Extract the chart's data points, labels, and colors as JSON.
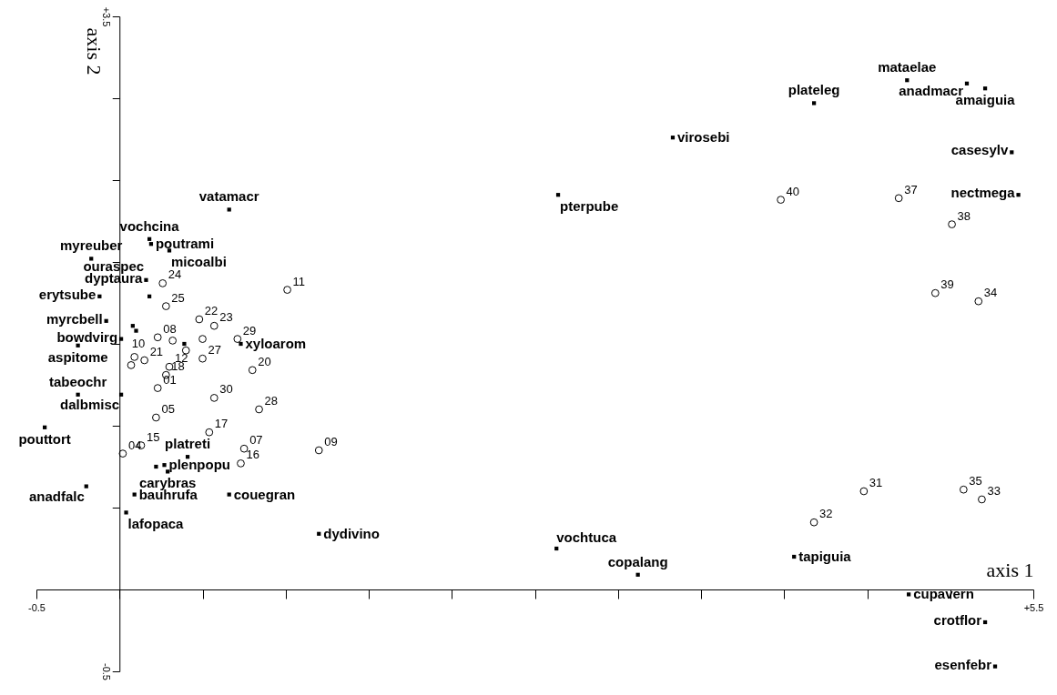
{
  "chart_data": {
    "type": "scatter",
    "xlabel": "axis 1",
    "ylabel": "axis 2",
    "xlim": [
      -0.5,
      5.5
    ],
    "ylim": [
      -0.5,
      3.5
    ],
    "xticks": [
      {
        "value": -0.5,
        "label": "-0.5"
      },
      {
        "value": 0,
        "label": null
      },
      {
        "value": 0.5,
        "label": null
      },
      {
        "value": 1,
        "label": null
      },
      {
        "value": 1.5,
        "label": null
      },
      {
        "value": 2,
        "label": null
      },
      {
        "value": 2.5,
        "label": null
      },
      {
        "value": 3,
        "label": null
      },
      {
        "value": 3.5,
        "label": null
      },
      {
        "value": 4,
        "label": null
      },
      {
        "value": 4.5,
        "label": null
      },
      {
        "value": 5,
        "label": null
      },
      {
        "value": 5.5,
        "label": "+5.5"
      }
    ],
    "yticks": [
      {
        "value": -0.5,
        "label": "-0.5"
      },
      {
        "value": 0,
        "label": null
      },
      {
        "value": 0.5,
        "label": null
      },
      {
        "value": 1,
        "label": null
      },
      {
        "value": 1.5,
        "label": null
      },
      {
        "value": 2,
        "label": null
      },
      {
        "value": 2.5,
        "label": null
      },
      {
        "value": 3,
        "label": null
      },
      {
        "value": 3.5,
        "label": "+3.5"
      }
    ],
    "series": [
      {
        "color": "#000000",
        "marker": "square",
        "x": [
          0.66,
          0.18,
          0.19,
          0.3,
          -0.17,
          0.18,
          0.16,
          -0.12,
          -0.08,
          0.01,
          0.08,
          0.1,
          -0.25,
          0.39,
          0.73,
          -0.25,
          0.01,
          -0.45,
          0.41,
          0.22,
          0.27,
          0.29,
          -0.2,
          0.09,
          0.04,
          0.66,
          1.2,
          2.63,
          3.12,
          2.64,
          3.33,
          4.18,
          4.74,
          5.1,
          5.21,
          5.37,
          5.41,
          4.06,
          4.75,
          5.21,
          5.27
        ],
        "values": [
          2.32,
          2.14,
          2.11,
          2.07,
          2.02,
          1.79,
          1.89,
          1.79,
          1.64,
          1.53,
          1.61,
          1.58,
          1.49,
          1.5,
          1.5,
          1.19,
          1.19,
          0.99,
          0.81,
          0.75,
          0.76,
          0.72,
          0.63,
          0.58,
          0.47,
          0.58,
          0.34,
          0.25,
          0.09,
          2.41,
          2.76,
          2.97,
          3.11,
          3.09,
          3.06,
          2.67,
          2.41,
          0.2,
          -0.03,
          -0.2,
          -0.47
        ]
      },
      {
        "color": "#000000",
        "marker": "circle",
        "x": [
          1.01,
          0.26,
          0.28,
          0.48,
          0.57,
          0.23,
          0.32,
          0.5,
          0.4,
          0.71,
          0.09,
          0.15,
          0.07,
          0.3,
          0.28,
          0.5,
          0.8,
          0.23,
          0.57,
          0.84,
          0.22,
          0.54,
          0.13,
          0.02,
          0.75,
          0.73,
          1.2,
          3.98,
          4.69,
          5.01,
          4.91,
          5.17,
          4.48,
          4.18,
          5.08,
          5.19
        ],
        "values": [
          1.83,
          1.87,
          1.73,
          1.65,
          1.61,
          1.54,
          1.52,
          1.53,
          1.46,
          1.53,
          1.42,
          1.4,
          1.37,
          1.36,
          1.31,
          1.41,
          1.34,
          1.23,
          1.17,
          1.1,
          1.05,
          0.96,
          0.88,
          0.83,
          0.86,
          0.77,
          0.85,
          2.38,
          2.39,
          2.23,
          1.81,
          1.76,
          0.6,
          0.41,
          0.61,
          0.55
        ]
      }
    ],
    "annotations": [
      {
        "text": "vatamacr",
        "x": 0.66,
        "y": 2.32
      },
      {
        "text": "vochcina",
        "x": 0.18,
        "y": 2.14
      },
      {
        "text": "poutrami",
        "x": 0.19,
        "y": 2.11
      },
      {
        "text": "micoalbi",
        "x": 0.3,
        "y": 2.07
      },
      {
        "text": "myreuber",
        "x": -0.17,
        "y": 2.02
      },
      {
        "text": "ouraspec",
        "x": 0.18,
        "y": 1.79
      },
      {
        "text": "dyptaura",
        "x": 0.16,
        "y": 1.89
      },
      {
        "text": "erytsube",
        "x": -0.12,
        "y": 1.79
      },
      {
        "text": "myrcbell",
        "x": -0.08,
        "y": 1.64
      },
      {
        "text": "bowdvirg",
        "x": 0.01,
        "y": 1.53
      },
      {
        "text": "aspitome",
        "x": -0.25,
        "y": 1.49
      },
      {
        "text": "xyloarom",
        "x": 0.73,
        "y": 1.5
      },
      {
        "text": "tabeochr",
        "x": -0.25,
        "y": 1.19
      },
      {
        "text": "dalbmisc",
        "x": 0.01,
        "y": 1.19
      },
      {
        "text": "pouttort",
        "x": -0.45,
        "y": 0.99
      },
      {
        "text": "platreti",
        "x": 0.41,
        "y": 0.81
      },
      {
        "text": "plenpopu",
        "x": 0.27,
        "y": 0.76
      },
      {
        "text": "carybras",
        "x": 0.29,
        "y": 0.72
      },
      {
        "text": "anadfalc",
        "x": -0.2,
        "y": 0.63
      },
      {
        "text": "bauhrufa",
        "x": 0.09,
        "y": 0.58
      },
      {
        "text": "lafopaca",
        "x": 0.04,
        "y": 0.47
      },
      {
        "text": "couegran",
        "x": 0.66,
        "y": 0.58
      },
      {
        "text": "dydivino",
        "x": 1.2,
        "y": 0.34
      },
      {
        "text": "vochtuca",
        "x": 2.63,
        "y": 0.25
      },
      {
        "text": "copalang",
        "x": 3.12,
        "y": 0.09
      },
      {
        "text": "pterpube",
        "x": 2.64,
        "y": 2.41
      },
      {
        "text": "virosebi",
        "x": 3.33,
        "y": 2.76
      },
      {
        "text": "plateleg",
        "x": 4.18,
        "y": 2.97
      },
      {
        "text": "mataelae",
        "x": 4.74,
        "y": 3.11
      },
      {
        "text": "anadmacr",
        "x": 5.1,
        "y": 3.09
      },
      {
        "text": "amaiguia",
        "x": 5.21,
        "y": 3.06
      },
      {
        "text": "casesylv",
        "x": 5.37,
        "y": 2.67
      },
      {
        "text": "nectmega",
        "x": 5.41,
        "y": 2.41
      },
      {
        "text": "tapiguia",
        "x": 4.06,
        "y": 0.2
      },
      {
        "text": "cupavern",
        "x": 4.75,
        "y": -0.03
      },
      {
        "text": "crotflor",
        "x": 5.21,
        "y": -0.2
      },
      {
        "text": "esenfebr",
        "x": 5.27,
        "y": -0.47
      },
      {
        "text": "11",
        "x": 1.01,
        "y": 1.83
      },
      {
        "text": "24",
        "x": 0.26,
        "y": 1.87
      },
      {
        "text": "25",
        "x": 0.28,
        "y": 1.73
      },
      {
        "text": "22",
        "x": 0.48,
        "y": 1.65
      },
      {
        "text": "23",
        "x": 0.57,
        "y": 1.61
      },
      {
        "text": "08",
        "x": 0.23,
        "y": 1.54
      },
      {
        "text": "29",
        "x": 0.71,
        "y": 1.53
      },
      {
        "text": "10",
        "x": 0.09,
        "y": 1.42
      },
      {
        "text": "21",
        "x": 0.15,
        "y": 1.4
      },
      {
        "text": "12",
        "x": 0.3,
        "y": 1.36
      },
      {
        "text": "18",
        "x": 0.28,
        "y": 1.31
      },
      {
        "text": "27",
        "x": 0.5,
        "y": 1.41
      },
      {
        "text": "20",
        "x": 0.8,
        "y": 1.34
      },
      {
        "text": "01",
        "x": 0.23,
        "y": 1.23
      },
      {
        "text": "30",
        "x": 0.57,
        "y": 1.17
      },
      {
        "text": "28",
        "x": 0.84,
        "y": 1.1
      },
      {
        "text": "05",
        "x": 0.22,
        "y": 1.05
      },
      {
        "text": "17",
        "x": 0.54,
        "y": 0.96
      },
      {
        "text": "15",
        "x": 0.13,
        "y": 0.88
      },
      {
        "text": "04",
        "x": 0.02,
        "y": 0.83
      },
      {
        "text": "07",
        "x": 0.75,
        "y": 0.86
      },
      {
        "text": "16",
        "x": 0.73,
        "y": 0.77
      },
      {
        "text": "09",
        "x": 1.2,
        "y": 0.85
      },
      {
        "text": "40",
        "x": 3.98,
        "y": 2.38
      },
      {
        "text": "37",
        "x": 4.69,
        "y": 2.39
      },
      {
        "text": "38",
        "x": 5.01,
        "y": 2.23
      },
      {
        "text": "39",
        "x": 4.91,
        "y": 1.81
      },
      {
        "text": "34",
        "x": 5.17,
        "y": 1.76
      },
      {
        "text": "31",
        "x": 4.48,
        "y": 0.6
      },
      {
        "text": "32",
        "x": 4.18,
        "y": 0.41
      },
      {
        "text": "35",
        "x": 5.08,
        "y": 0.61
      },
      {
        "text": "33",
        "x": 5.19,
        "y": 0.55
      }
    ]
  }
}
